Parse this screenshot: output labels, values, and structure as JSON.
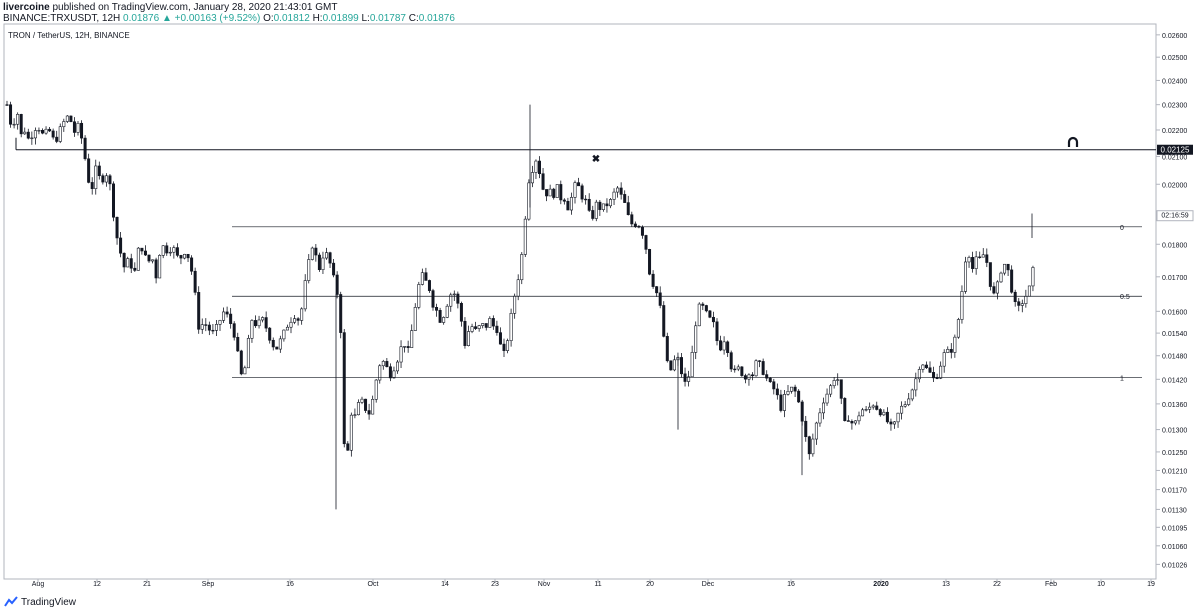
{
  "header": {
    "publisher": "livercoine",
    "publish_text": "published on TradingView.com, January 28, 2020 21:43:01 GMT",
    "symbol": "BINANCE:TRXUSDT, 12H",
    "last": "0.01876",
    "change": "+0.00163 (+9.52%)",
    "o_label": "O:",
    "o_val": "0.01812",
    "h_label": "H:",
    "h_val": "0.01899",
    "l_label": "L:",
    "l_val": "0.01787",
    "c_label": "C:",
    "c_val": "0.01876"
  },
  "footer": {
    "brand": "TradingView"
  },
  "colors": {
    "up": "#26a69a",
    "down": "#ef5350",
    "candle": "#131722",
    "grid": "#e0e3eb"
  },
  "chart_data": {
    "type": "candlestick",
    "title": "TRON / TetherUS, 12H, BINANCE",
    "y_scale": "log",
    "ylim": [
      0.01,
      0.0265
    ],
    "y_ticks": [
      "0.02600",
      "0.02500",
      "0.02400",
      "0.02300",
      "0.02200",
      "0.02100",
      "0.02000",
      "0.01900",
      "0.01800",
      "0.01700",
      "0.01600",
      "0.01540",
      "0.01480",
      "0.01420",
      "0.01360",
      "0.01300",
      "0.01250",
      "0.01210",
      "0.01170",
      "0.01130",
      "0.01095",
      "0.01060",
      "0.01026"
    ],
    "x_ticks": [
      "Aug",
      "12",
      "21",
      "Sep",
      "16",
      "Oct",
      "14",
      "23",
      "Nov",
      "11",
      "20",
      "Dec",
      "16",
      "2020",
      "13",
      "22",
      "Feb",
      "10",
      "19"
    ],
    "price_label": "0.02125",
    "countdown_label": "02:16:59",
    "fib_levels": [
      {
        "label": "0",
        "price": 0.01856
      },
      {
        "label": "0.5",
        "price": 0.01643
      },
      {
        "label": "1",
        "price": 0.01425
      }
    ],
    "horizontal_line": 0.02125,
    "path": [
      [
        0,
        0.023
      ],
      [
        5,
        0.022
      ],
      [
        10,
        0.0228
      ],
      [
        14,
        0.0218
      ],
      [
        18,
        0.022
      ],
      [
        22,
        0.0216
      ],
      [
        30,
        0.0222
      ],
      [
        36,
        0.0218
      ],
      [
        42,
        0.022
      ],
      [
        48,
        0.0215
      ],
      [
        55,
        0.0222
      ],
      [
        62,
        0.0226
      ],
      [
        67,
        0.0219
      ],
      [
        72,
        0.0222
      ],
      [
        76,
        0.0214
      ],
      [
        80,
        0.0205
      ],
      [
        84,
        0.0196
      ],
      [
        88,
        0.0206
      ],
      [
        94,
        0.0201
      ],
      [
        100,
        0.0204
      ],
      [
        104,
        0.0198
      ],
      [
        108,
        0.0185
      ],
      [
        113,
        0.0178
      ],
      [
        118,
        0.0172
      ],
      [
        122,
        0.0176
      ],
      [
        127,
        0.017
      ],
      [
        131,
        0.0178
      ],
      [
        136,
        0.0179
      ],
      [
        140,
        0.0174
      ],
      [
        145,
        0.0176
      ],
      [
        149,
        0.017
      ],
      [
        154,
        0.018
      ],
      [
        160,
        0.0178
      ],
      [
        166,
        0.0179
      ],
      [
        172,
        0.0175
      ],
      [
        178,
        0.0178
      ],
      [
        183,
        0.0175
      ],
      [
        188,
        0.0165
      ],
      [
        192,
        0.0155
      ],
      [
        197,
        0.0157
      ],
      [
        202,
        0.0155
      ],
      [
        207,
        0.0154
      ],
      [
        212,
        0.0157
      ],
      [
        217,
        0.016
      ],
      [
        222,
        0.0158
      ],
      [
        227,
        0.0154
      ],
      [
        231,
        0.0148
      ],
      [
        235,
        0.0142
      ],
      [
        239,
        0.0146
      ],
      [
        244,
        0.0158
      ],
      [
        250,
        0.0156
      ],
      [
        255,
        0.0158
      ],
      [
        260,
        0.0155
      ],
      [
        265,
        0.0151
      ],
      [
        270,
        0.015
      ],
      [
        275,
        0.0153
      ],
      [
        282,
        0.0157
      ],
      [
        288,
        0.0159
      ],
      [
        293,
        0.0157
      ],
      [
        297,
        0.0166
      ],
      [
        301,
        0.0173
      ],
      [
        305,
        0.018
      ],
      [
        309,
        0.0176
      ],
      [
        313,
        0.0172
      ],
      [
        317,
        0.0178
      ],
      [
        321,
        0.0176
      ],
      [
        325,
        0.0172
      ],
      [
        329,
        0.0166
      ],
      [
        333,
        0.0163
      ],
      [
        336,
        0.0128
      ],
      [
        340,
        0.0123
      ],
      [
        344,
        0.0134
      ],
      [
        348,
        0.0133
      ],
      [
        353,
        0.0137
      ],
      [
        357,
        0.0136
      ],
      [
        361,
        0.0133
      ],
      [
        365,
        0.0136
      ],
      [
        370,
        0.0143
      ],
      [
        374,
        0.0147
      ],
      [
        378,
        0.0146
      ],
      [
        383,
        0.0143
      ],
      [
        387,
        0.0145
      ],
      [
        392,
        0.0148
      ],
      [
        396,
        0.0152
      ],
      [
        401,
        0.0149
      ],
      [
        405,
        0.0155
      ],
      [
        409,
        0.0163
      ],
      [
        414,
        0.0171
      ],
      [
        418,
        0.0169
      ],
      [
        422,
        0.0167
      ],
      [
        426,
        0.0162
      ],
      [
        430,
        0.016
      ],
      [
        434,
        0.0157
      ],
      [
        438,
        0.016
      ],
      [
        442,
        0.0164
      ],
      [
        446,
        0.0166
      ],
      [
        450,
        0.0163
      ],
      [
        454,
        0.0158
      ],
      [
        458,
        0.0151
      ],
      [
        462,
        0.0155
      ],
      [
        466,
        0.0156
      ],
      [
        470,
        0.0154
      ],
      [
        474,
        0.0157
      ],
      [
        478,
        0.0155
      ],
      [
        482,
        0.0158
      ],
      [
        486,
        0.0156
      ],
      [
        490,
        0.0155
      ],
      [
        494,
        0.015
      ],
      [
        498,
        0.0148
      ],
      [
        502,
        0.0155
      ],
      [
        506,
        0.0162
      ],
      [
        510,
        0.0168
      ],
      [
        514,
        0.0174
      ],
      [
        518,
        0.0188
      ],
      [
        522,
        0.0202
      ],
      [
        526,
        0.0206
      ],
      [
        530,
        0.021
      ],
      [
        534,
        0.0201
      ],
      [
        538,
        0.0196
      ],
      [
        542,
        0.0198
      ],
      [
        546,
        0.0196
      ],
      [
        550,
        0.0199
      ],
      [
        554,
        0.0195
      ],
      [
        558,
        0.0195
      ],
      [
        562,
        0.0191
      ],
      [
        566,
        0.0198
      ],
      [
        570,
        0.0201
      ],
      [
        574,
        0.0196
      ],
      [
        578,
        0.0195
      ],
      [
        582,
        0.019
      ],
      [
        586,
        0.0189
      ],
      [
        590,
        0.0194
      ],
      [
        594,
        0.0191
      ],
      [
        598,
        0.0193
      ],
      [
        602,
        0.0193
      ],
      [
        606,
        0.0196
      ],
      [
        610,
        0.0199
      ],
      [
        614,
        0.0196
      ],
      [
        618,
        0.0193
      ],
      [
        622,
        0.0188
      ],
      [
        626,
        0.0186
      ],
      [
        630,
        0.0187
      ],
      [
        634,
        0.0185
      ],
      [
        638,
        0.0181
      ],
      [
        642,
        0.0172
      ],
      [
        646,
        0.0168
      ],
      [
        650,
        0.0165
      ],
      [
        654,
        0.016
      ],
      [
        658,
        0.015
      ],
      [
        662,
        0.0143
      ],
      [
        666,
        0.0146
      ],
      [
        670,
        0.0148
      ],
      [
        674,
        0.0144
      ],
      [
        678,
        0.0141
      ],
      [
        682,
        0.0143
      ],
      [
        686,
        0.015
      ],
      [
        690,
        0.016
      ],
      [
        694,
        0.0162
      ],
      [
        698,
        0.016
      ],
      [
        702,
        0.0158
      ],
      [
        706,
        0.0157
      ],
      [
        710,
        0.0152
      ],
      [
        714,
        0.015
      ],
      [
        718,
        0.0153
      ],
      [
        722,
        0.0148
      ],
      [
        726,
        0.0143
      ],
      [
        730,
        0.0145
      ],
      [
        734,
        0.0144
      ],
      [
        738,
        0.0142
      ],
      [
        742,
        0.0144
      ],
      [
        746,
        0.0143
      ],
      [
        750,
        0.0147
      ],
      [
        754,
        0.0145
      ],
      [
        758,
        0.0143
      ],
      [
        762,
        0.0141
      ],
      [
        766,
        0.014
      ],
      [
        770,
        0.0138
      ],
      [
        774,
        0.0135
      ],
      [
        778,
        0.0138
      ],
      [
        782,
        0.0139
      ],
      [
        786,
        0.014
      ],
      [
        790,
        0.0138
      ],
      [
        794,
        0.0134
      ],
      [
        798,
        0.0129
      ],
      [
        802,
        0.0124
      ],
      [
        806,
        0.0128
      ],
      [
        810,
        0.0132
      ],
      [
        814,
        0.0135
      ],
      [
        818,
        0.0138
      ],
      [
        822,
        0.0139
      ],
      [
        826,
        0.0142
      ],
      [
        830,
        0.0143
      ],
      [
        834,
        0.0137
      ],
      [
        838,
        0.0131
      ],
      [
        842,
        0.0133
      ],
      [
        846,
        0.0131
      ],
      [
        850,
        0.0132
      ],
      [
        854,
        0.0135
      ],
      [
        858,
        0.0134
      ],
      [
        862,
        0.0135
      ],
      [
        866,
        0.0136
      ],
      [
        870,
        0.0135
      ],
      [
        874,
        0.0134
      ],
      [
        878,
        0.0133
      ],
      [
        882,
        0.0131
      ],
      [
        886,
        0.013
      ],
      [
        890,
        0.0133
      ],
      [
        894,
        0.0135
      ],
      [
        898,
        0.0136
      ],
      [
        902,
        0.0138
      ],
      [
        906,
        0.014
      ],
      [
        910,
        0.0143
      ],
      [
        914,
        0.0147
      ],
      [
        918,
        0.0145
      ],
      [
        922,
        0.0144
      ],
      [
        926,
        0.0142
      ],
      [
        930,
        0.0143
      ],
      [
        934,
        0.0146
      ],
      [
        938,
        0.0149
      ],
      [
        942,
        0.0149
      ],
      [
        946,
        0.015
      ],
      [
        950,
        0.0155
      ],
      [
        954,
        0.0163
      ],
      [
        958,
        0.0175
      ],
      [
        962,
        0.0177
      ],
      [
        966,
        0.0172
      ],
      [
        970,
        0.0176
      ],
      [
        974,
        0.0175
      ],
      [
        978,
        0.0178
      ],
      [
        982,
        0.017
      ],
      [
        986,
        0.0164
      ],
      [
        990,
        0.0167
      ],
      [
        994,
        0.0172
      ],
      [
        998,
        0.0174
      ],
      [
        1002,
        0.0171
      ],
      [
        1006,
        0.0164
      ],
      [
        1010,
        0.016
      ],
      [
        1014,
        0.0162
      ],
      [
        1018,
        0.0164
      ],
      [
        1022,
        0.0166
      ],
      [
        1026,
        0.0172
      ],
      [
        1030,
        0.0181
      ],
      [
        1032,
        0.0188
      ]
    ]
  }
}
